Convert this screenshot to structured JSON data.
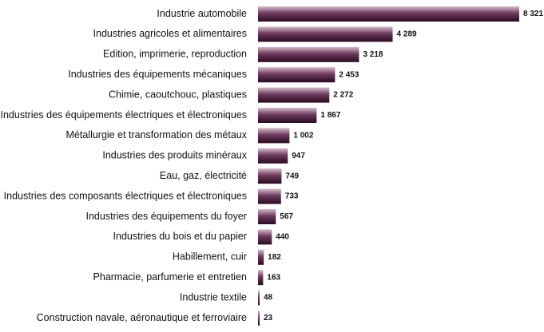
{
  "chart_data": {
    "type": "bar",
    "orientation": "horizontal",
    "categories": [
      "Industrie automobile",
      "Industries agricoles et alimentaires",
      "Edition, imprimerie, reproduction",
      "Industries des équipements mécaniques",
      "Chimie, caoutchouc, plastiques",
      "Industries des équipements électriques et électroniques",
      "Métallurgie et transformation des métaux",
      "Industries des produits minéraux",
      "Eau, gaz, électricité",
      "Industries des composants électriques et électroniques",
      "Industries des équipements du foyer",
      "Industries du bois et du papier",
      "Habillement, cuir",
      "Pharmacie, parfumerie et entretien",
      "Industrie textile",
      "Construction navale, aéronautique et ferroviaire"
    ],
    "values": [
      8321,
      4289,
      3218,
      2453,
      2272,
      1867,
      1002,
      947,
      749,
      733,
      567,
      440,
      182,
      163,
      48,
      23
    ],
    "value_labels": [
      "8 321",
      "4 289",
      "3 218",
      "2 453",
      "2 272",
      "1 867",
      "1 002",
      "947",
      "749",
      "733",
      "567",
      "440",
      "182",
      "163",
      "48",
      "23"
    ],
    "title": "",
    "xlabel": "",
    "ylabel": "",
    "grid": false,
    "legend": "none",
    "colors": {
      "bar_dark": "#2a0b22",
      "bar_mid": "#6e3a5e",
      "bar_light": "#d6bccb",
      "text": "#111111"
    }
  }
}
